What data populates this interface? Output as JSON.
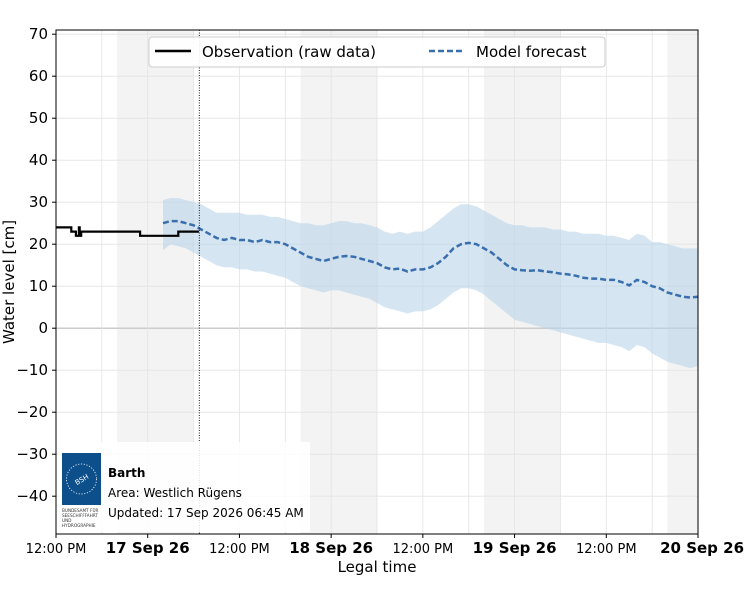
{
  "chart_data": {
    "type": "line",
    "xlabel": "Legal time",
    "ylabel": "Water level [cm]",
    "ylim": [
      -49,
      71
    ],
    "xlim_hours": [
      0,
      84
    ],
    "yticks": [
      70,
      60,
      50,
      40,
      30,
      20,
      10,
      0,
      -10,
      -20,
      -30,
      -40
    ],
    "ytick_labels": [
      "70",
      "60",
      "50",
      "40",
      "30",
      "20",
      "10",
      "0",
      "−10",
      "−20",
      "−30",
      "−40"
    ],
    "xticks": [
      {
        "h": 0,
        "label": "12:00 PM",
        "bold": false
      },
      {
        "h": 12,
        "label": "17 Sep 26",
        "bold": true
      },
      {
        "h": 24,
        "label": "12:00 PM",
        "bold": false
      },
      {
        "h": 36,
        "label": "18 Sep 26",
        "bold": true
      },
      {
        "h": 48,
        "label": "12:00 PM",
        "bold": false
      },
      {
        "h": 60,
        "label": "19 Sep 26",
        "bold": true
      },
      {
        "h": 72,
        "label": "12:00 PM",
        "bold": false
      },
      {
        "h": 84,
        "label": "20 Sep 26",
        "bold": true
      }
    ],
    "night_bands": [
      [
        8,
        18
      ],
      [
        32,
        42
      ],
      [
        56,
        66
      ],
      [
        80,
        84
      ]
    ],
    "now_hour": 18.75,
    "legend": {
      "placement": "top-center",
      "observation_label": "Observation (raw data)",
      "forecast_label": "Model forecast"
    },
    "colors": {
      "observation": "#000000",
      "forecast": "#3a6fae",
      "band": "#b9d3ea",
      "night": "#f3f3f3",
      "grid": "#e3e3e3",
      "zero": "#cccccc"
    },
    "series": [
      {
        "name": "Observation (raw data)",
        "x": [
          0,
          2,
          2,
          2.6,
          2.6,
          3,
          3,
          3.1,
          3.1,
          3.3,
          3.3,
          3.5,
          3.5,
          11,
          11,
          16,
          16,
          18.7
        ],
        "y": [
          24,
          24,
          23,
          23,
          22,
          22,
          24,
          24,
          22,
          22,
          23,
          23,
          23,
          23,
          22,
          22,
          23,
          23
        ]
      },
      {
        "name": "Model forecast",
        "x": [
          14,
          15,
          16,
          17,
          18,
          19,
          20,
          21,
          22,
          23,
          24,
          25,
          26,
          27,
          28,
          29,
          30,
          31,
          32,
          33,
          34,
          35,
          36,
          37,
          38,
          39,
          40,
          41,
          42,
          43,
          44,
          45,
          46,
          47,
          48,
          49,
          50,
          51,
          52,
          53,
          54,
          55,
          56,
          57,
          58,
          59,
          60,
          61,
          62,
          63,
          64,
          65,
          66,
          67,
          68,
          69,
          70,
          71,
          72,
          73,
          74,
          75,
          76,
          77,
          78,
          79,
          80,
          81,
          82,
          83,
          84
        ],
        "y": [
          25,
          25.5,
          25.5,
          25,
          24.5,
          23.5,
          22.5,
          21.5,
          21,
          21.5,
          21,
          21,
          20.5,
          21,
          20.5,
          20.5,
          20,
          19,
          18,
          17,
          16.5,
          16,
          16.5,
          17,
          17.2,
          17,
          16.5,
          16,
          15.5,
          14.5,
          14,
          14.2,
          13.5,
          14,
          14,
          14.5,
          15.5,
          17,
          19,
          20,
          20.3,
          20,
          19,
          18,
          16.5,
          15,
          14,
          13.8,
          13.7,
          13.8,
          13.5,
          13.3,
          13,
          12.8,
          12.5,
          12,
          11.8,
          11.8,
          11.5,
          11.5,
          11,
          10.2,
          11.5,
          11,
          10,
          9.5,
          8.5,
          8,
          7.5,
          7.3,
          7.5
        ],
        "lower": [
          18.5,
          20,
          19.5,
          19,
          18,
          17,
          16,
          15,
          14.5,
          14.5,
          14,
          14,
          13.5,
          13.5,
          13,
          12.5,
          12,
          11,
          10,
          9.5,
          9,
          8.5,
          9,
          9,
          8.5,
          8,
          7.5,
          7,
          6,
          5,
          4.5,
          4,
          3.5,
          4,
          4,
          4.5,
          5.5,
          7,
          8.5,
          9.5,
          9.5,
          9,
          8,
          6.5,
          5,
          3.5,
          2,
          1.5,
          1,
          0.5,
          0,
          -0.5,
          -1,
          -1.5,
          -2,
          -2.5,
          -3,
          -3.5,
          -3.5,
          -4,
          -4.5,
          -5.5,
          -4,
          -4.5,
          -6,
          -7,
          -8,
          -8.5,
          -9,
          -9.5,
          -9
        ]
      }
    ],
    "forecast_upper": [
      30.5,
      31,
      31,
      30.5,
      30,
      29.5,
      28.5,
      27.5,
      27.5,
      27.5,
      27.5,
      27,
      27,
      27,
      26.5,
      26.5,
      26,
      25.5,
      25,
      25,
      24.5,
      24.5,
      25,
      25.5,
      25.5,
      25,
      25,
      24.5,
      24,
      23,
      22.5,
      23,
      22.5,
      23,
      23,
      24,
      25.5,
      27,
      28.5,
      29.5,
      29.5,
      29,
      28,
      27,
      26,
      25,
      24.5,
      24.5,
      24,
      24,
      24,
      23.5,
      23.5,
      23,
      23,
      22.5,
      22.5,
      22.5,
      22,
      22,
      21.5,
      21,
      22.5,
      22,
      20.5,
      20.5,
      20,
      19.5,
      19,
      19,
      19
    ]
  },
  "info_box": {
    "logo_text": "BSH",
    "logo_caption": "BUNDESAMT FÜR SEESCHIFFFAHRT UND HYDROGRAPHIE",
    "station": "Barth",
    "area": "Area: Westlich Rügens",
    "updated": "Updated: 17 Sep 2026 06:45 AM",
    "logo_color": "#0d4f8b"
  }
}
